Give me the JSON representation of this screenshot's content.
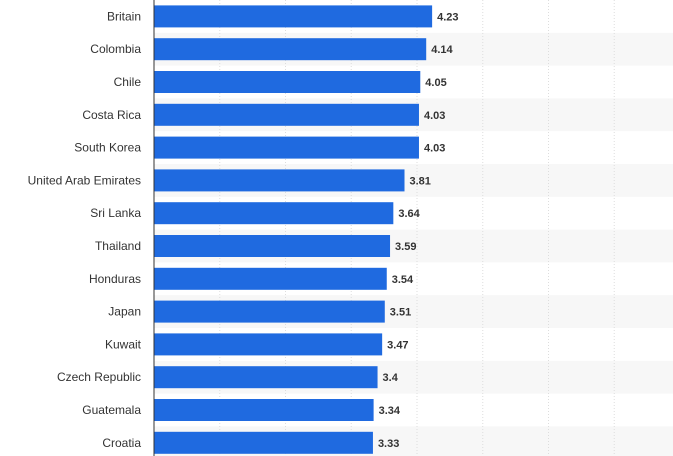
{
  "chart_data": {
    "type": "bar",
    "orientation": "horizontal",
    "categories": [
      "Britain",
      "Colombia",
      "Chile",
      "Costa Rica",
      "South Korea",
      "United Arab Emirates",
      "Sri Lanka",
      "Thailand",
      "Honduras",
      "Japan",
      "Kuwait",
      "Czech Republic",
      "Guatemala",
      "Croatia"
    ],
    "values": [
      4.23,
      4.14,
      4.05,
      4.03,
      4.03,
      3.81,
      3.64,
      3.59,
      3.54,
      3.51,
      3.47,
      3.4,
      3.34,
      3.33
    ],
    "value_labels": [
      "4.23",
      "4.14",
      "4.05",
      "4.03",
      "4.03",
      "3.81",
      "3.64",
      "3.59",
      "3.54",
      "3.51",
      "3.47",
      "3.4",
      "3.34",
      "3.33"
    ],
    "title": "",
    "xlabel": "",
    "ylabel": "",
    "xlim": [
      0,
      8
    ],
    "grid": true,
    "legend": "none",
    "colors": {
      "bar": "#1f6ae0",
      "stripe": "#f7f7f7",
      "grid": "#dddddd",
      "axis": "#333333",
      "label": "#333333"
    }
  }
}
